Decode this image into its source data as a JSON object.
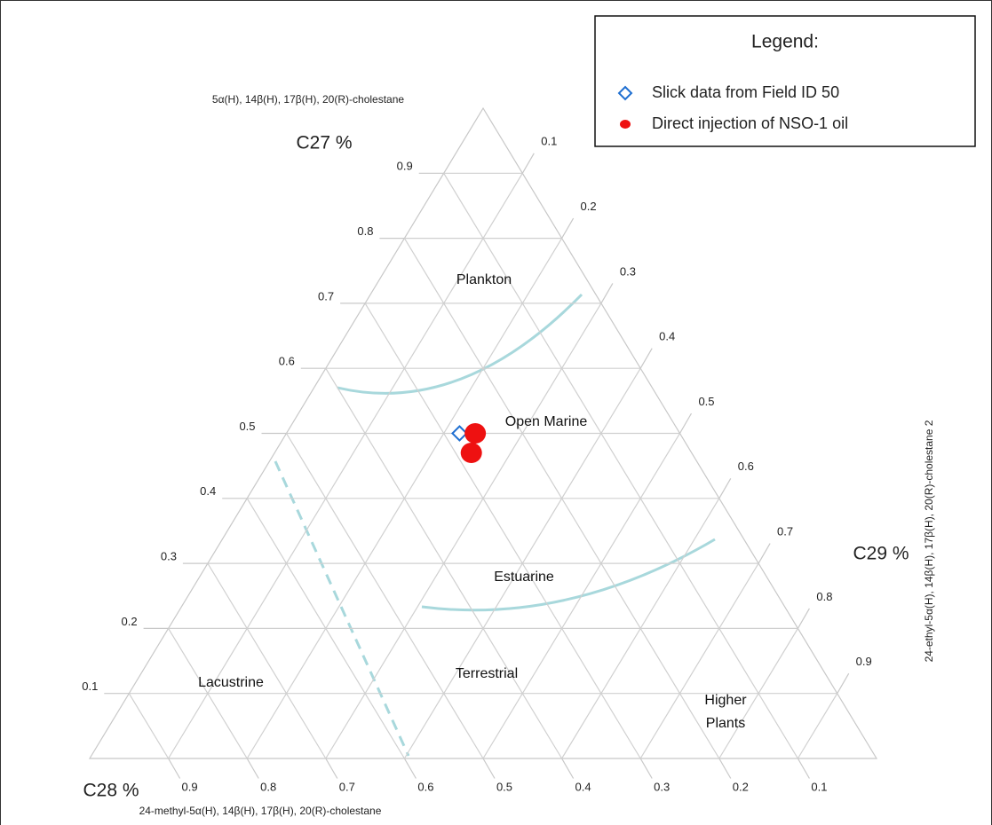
{
  "chart_data": {
    "type": "ternary",
    "axes": [
      {
        "title": "C27 %",
        "name": "5α(H), 14β(H), 17β(H), 20(R)-cholestane",
        "ticks": [
          0.1,
          0.2,
          0.3,
          0.4,
          0.5,
          0.6,
          0.7,
          0.8,
          0.9
        ]
      },
      {
        "title": "C28 %",
        "name": "24-methyl-5α(H), 14β(H), 17β(H), 20(R)-cholestane",
        "ticks": [
          0.1,
          0.2,
          0.3,
          0.4,
          0.5,
          0.6,
          0.7,
          0.8,
          0.9
        ]
      },
      {
        "title": "C29 %",
        "name": "24-ethyl-5α(H), 14β(H), 17β(H), 20(R)-cholestane 2",
        "ticks": [
          0.1,
          0.2,
          0.3,
          0.4,
          0.5,
          0.6,
          0.7,
          0.8,
          0.9
        ]
      }
    ],
    "legend_title": "Legend:",
    "series": [
      {
        "name": "Slick data from Field ID 50",
        "marker": "diamond",
        "color": "#1f6fd1",
        "c27": [
          0.5
        ],
        "c28": [
          0.28
        ],
        "c29": [
          0.22
        ]
      },
      {
        "name": "Direct injection of NSO-1 oil",
        "marker": "dot",
        "color": "#ee1111",
        "c27": [
          0.5,
          0.47
        ],
        "c28": [
          0.26,
          0.28
        ],
        "c29": [
          0.24,
          0.25
        ]
      }
    ],
    "regions": [
      "Plankton",
      "Open Marine",
      "Estuarine",
      "Terrestrial",
      "Lacustrine",
      "Higher Plants"
    ],
    "grid": true
  }
}
